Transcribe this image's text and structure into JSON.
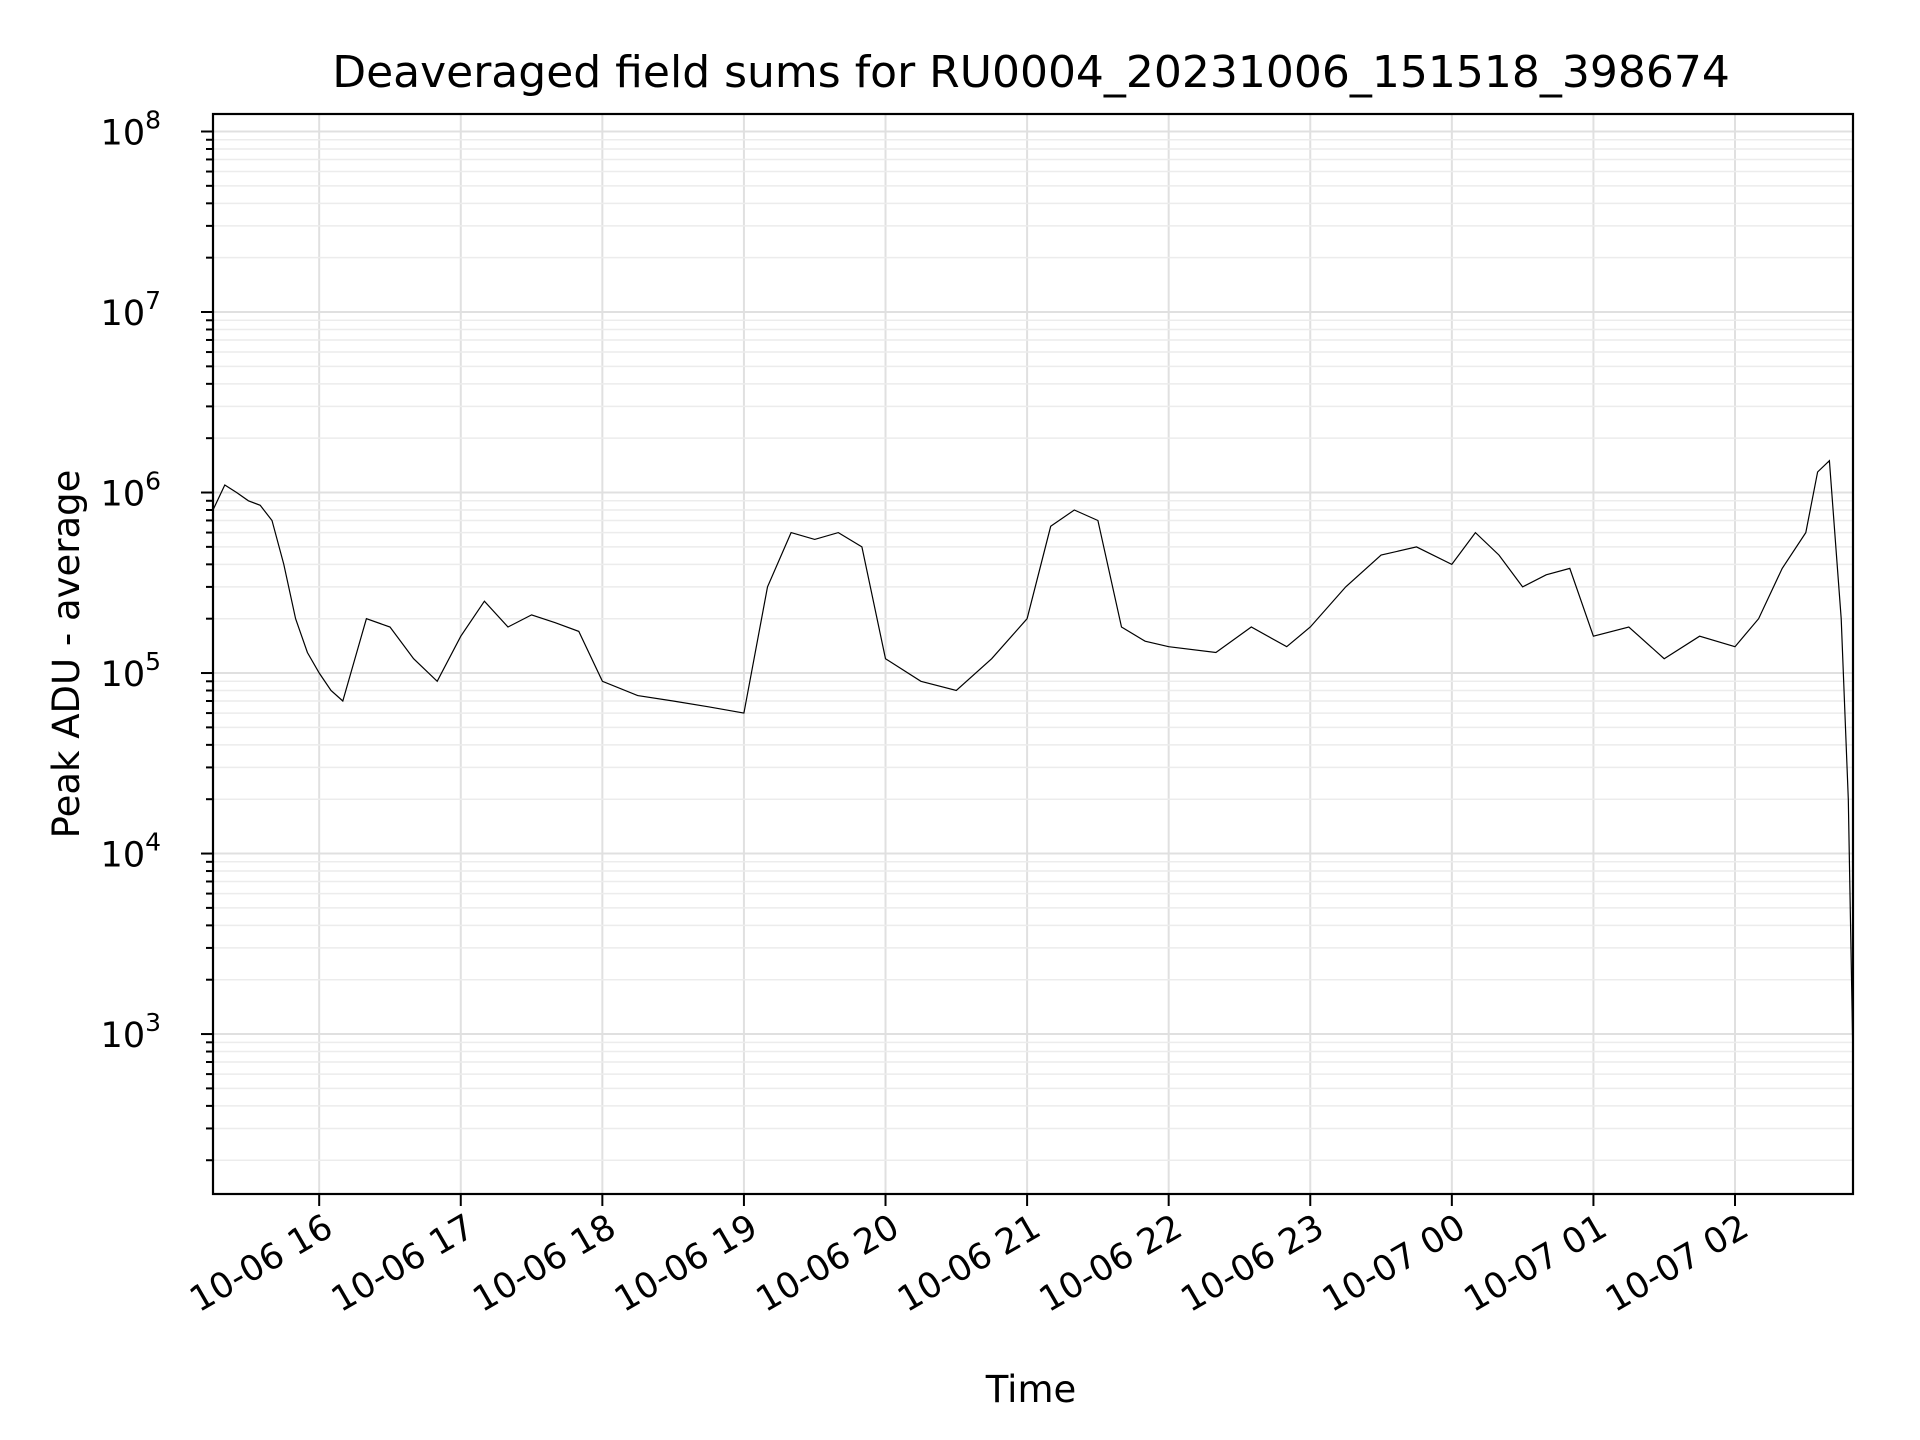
{
  "chart_data": {
    "type": "line",
    "title": "Deaveraged field sums for RU0004_20231006_151518_398674",
    "xlabel": "Time",
    "ylabel": "Peak ADU - average",
    "yscale": "log",
    "xlim": [
      "2023-10-06 15:15",
      "2023-10-07 02:50"
    ],
    "ylim": [
      130,
      125000000
    ],
    "grid": "on (major and minor)",
    "x_ticks": [
      "10-06 16",
      "10-06 17",
      "10-06 18",
      "10-06 19",
      "10-06 20",
      "10-06 21",
      "10-06 22",
      "10-06 23",
      "10-07 00",
      "10-07 01",
      "10-07 02"
    ],
    "y_ticks": [
      {
        "base": "10",
        "exp": "3",
        "value": 1000
      },
      {
        "base": "10",
        "exp": "4",
        "value": 10000
      },
      {
        "base": "10",
        "exp": "5",
        "value": 100000
      },
      {
        "base": "10",
        "exp": "6",
        "value": 1000000
      },
      {
        "base": "10",
        "exp": "7",
        "value": 10000000
      },
      {
        "base": "10",
        "exp": "8",
        "value": 100000000
      }
    ],
    "series": [
      {
        "color": "#000000",
        "x": [
          "2023-10-06 15:15",
          "2023-10-06 15:20",
          "2023-10-06 15:25",
          "2023-10-06 15:30",
          "2023-10-06 15:35",
          "2023-10-06 15:40",
          "2023-10-06 15:45",
          "2023-10-06 15:50",
          "2023-10-06 15:55",
          "2023-10-06 16:00",
          "2023-10-06 16:05",
          "2023-10-06 16:10",
          "2023-10-06 16:20",
          "2023-10-06 16:30",
          "2023-10-06 16:40",
          "2023-10-06 16:50",
          "2023-10-06 17:00",
          "2023-10-06 17:10",
          "2023-10-06 17:20",
          "2023-10-06 17:30",
          "2023-10-06 17:40",
          "2023-10-06 17:50",
          "2023-10-06 18:00",
          "2023-10-06 18:15",
          "2023-10-06 18:30",
          "2023-10-06 18:45",
          "2023-10-06 19:00",
          "2023-10-06 19:10",
          "2023-10-06 19:20",
          "2023-10-06 19:30",
          "2023-10-06 19:40",
          "2023-10-06 19:50",
          "2023-10-06 20:00",
          "2023-10-06 20:15",
          "2023-10-06 20:30",
          "2023-10-06 20:45",
          "2023-10-06 21:00",
          "2023-10-06 21:10",
          "2023-10-06 21:20",
          "2023-10-06 21:30",
          "2023-10-06 21:40",
          "2023-10-06 21:50",
          "2023-10-06 22:00",
          "2023-10-06 22:20",
          "2023-10-06 22:35",
          "2023-10-06 22:50",
          "2023-10-06 23:00",
          "2023-10-06 23:15",
          "2023-10-06 23:30",
          "2023-10-06 23:45",
          "2023-10-07 00:00",
          "2023-10-07 00:10",
          "2023-10-07 00:20",
          "2023-10-07 00:30",
          "2023-10-07 00:40",
          "2023-10-07 00:50",
          "2023-10-07 01:00",
          "2023-10-07 01:15",
          "2023-10-07 01:30",
          "2023-10-07 01:45",
          "2023-10-07 02:00",
          "2023-10-07 02:10",
          "2023-10-07 02:20",
          "2023-10-07 02:30",
          "2023-10-07 02:35",
          "2023-10-07 02:40",
          "2023-10-07 02:45",
          "2023-10-07 02:48",
          "2023-10-07 02:50"
        ],
        "y": [
          800000,
          1100000,
          1000000,
          900000,
          850000,
          700000,
          400000,
          200000,
          130000,
          100000,
          80000,
          70000,
          200000,
          180000,
          120000,
          90000,
          160000,
          250000,
          180000,
          210000,
          190000,
          170000,
          90000,
          75000,
          70000,
          65000,
          60000,
          300000,
          600000,
          550000,
          600000,
          500000,
          120000,
          90000,
          80000,
          120000,
          200000,
          650000,
          800000,
          700000,
          180000,
          150000,
          140000,
          130000,
          180000,
          140000,
          180000,
          300000,
          450000,
          500000,
          400000,
          600000,
          450000,
          300000,
          350000,
          380000,
          160000,
          180000,
          120000,
          160000,
          140000,
          200000,
          380000,
          600000,
          1300000,
          1500000,
          200000,
          20000,
          700
        ]
      }
    ]
  }
}
